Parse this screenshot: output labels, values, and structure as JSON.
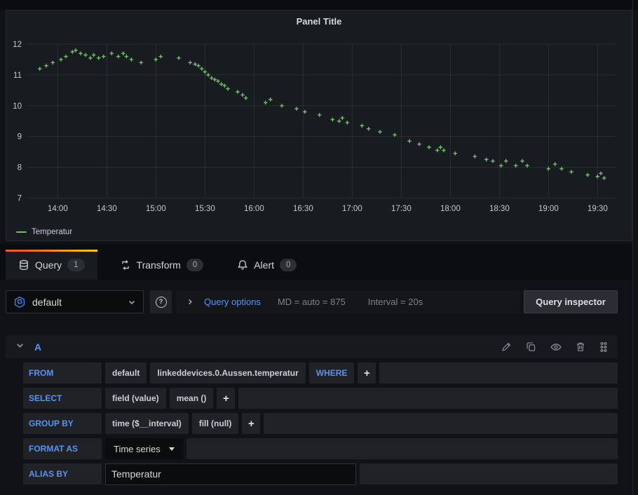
{
  "panel": {
    "title": "Panel Title"
  },
  "chart_data": {
    "type": "scatter",
    "title": "Panel Title",
    "x_range": [
      "13:41",
      "19:41"
    ],
    "x_ticks": [
      "14:00",
      "14:30",
      "15:00",
      "15:30",
      "16:00",
      "16:30",
      "17:00",
      "17:30",
      "18:00",
      "18:30",
      "19:00",
      "19:30"
    ],
    "ylim": [
      7,
      12
    ],
    "y_ticks": [
      7,
      8,
      9,
      10,
      11,
      12
    ],
    "grid": true,
    "legend": {
      "position": "bottom-left"
    },
    "series": [
      {
        "name": "Temperatur",
        "color": "#73BF69",
        "points": [
          [
            "13:49",
            11.2
          ],
          [
            "13:53",
            11.3
          ],
          [
            "13:57",
            11.4
          ],
          [
            "14:02",
            11.5
          ],
          [
            "14:05",
            11.6
          ],
          [
            "14:09",
            11.75
          ],
          [
            "14:11",
            11.8
          ],
          [
            "14:14",
            11.7
          ],
          [
            "14:17",
            11.65
          ],
          [
            "14:20",
            11.55
          ],
          [
            "14:22",
            11.65
          ],
          [
            "14:25",
            11.55
          ],
          [
            "14:28",
            11.6
          ],
          [
            "14:33",
            11.7
          ],
          [
            "14:37",
            11.6
          ],
          [
            "14:40",
            11.7
          ],
          [
            "14:42",
            11.6
          ],
          [
            "14:45",
            11.5
          ],
          [
            "14:51",
            11.4
          ],
          [
            "15:00",
            11.5
          ],
          [
            "15:03",
            11.6
          ],
          [
            "15:14",
            11.55
          ],
          [
            "15:21",
            11.4
          ],
          [
            "15:24",
            11.35
          ],
          [
            "15:26",
            11.3
          ],
          [
            "15:28",
            11.2
          ],
          [
            "15:30",
            11.1
          ],
          [
            "15:32",
            11.0
          ],
          [
            "15:34",
            10.9
          ],
          [
            "15:36",
            10.85
          ],
          [
            "15:38",
            10.8
          ],
          [
            "15:40",
            10.7
          ],
          [
            "15:42",
            10.65
          ],
          [
            "15:44",
            10.55
          ],
          [
            "15:50",
            10.45
          ],
          [
            "15:53",
            10.35
          ],
          [
            "15:55",
            10.25
          ],
          [
            "16:07",
            10.1
          ],
          [
            "16:10",
            10.2
          ],
          [
            "16:17",
            10.0
          ],
          [
            "16:26",
            9.9
          ],
          [
            "16:31",
            9.8
          ],
          [
            "16:40",
            9.7
          ],
          [
            "16:48",
            9.55
          ],
          [
            "16:52",
            9.5
          ],
          [
            "16:54",
            9.6
          ],
          [
            "16:57",
            9.45
          ],
          [
            "17:06",
            9.35
          ],
          [
            "17:10",
            9.25
          ],
          [
            "17:17",
            9.15
          ],
          [
            "17:26",
            9.05
          ],
          [
            "17:35",
            8.85
          ],
          [
            "17:41",
            8.75
          ],
          [
            "17:47",
            8.65
          ],
          [
            "17:52",
            8.55
          ],
          [
            "17:54",
            8.65
          ],
          [
            "17:56",
            8.55
          ],
          [
            "18:03",
            8.45
          ],
          [
            "18:15",
            8.35
          ],
          [
            "18:22",
            8.25
          ],
          [
            "18:26",
            8.2
          ],
          [
            "18:31",
            8.05
          ],
          [
            "18:34",
            8.2
          ],
          [
            "18:40",
            8.05
          ],
          [
            "18:44",
            8.2
          ],
          [
            "18:47",
            8.05
          ],
          [
            "19:00",
            7.95
          ],
          [
            "19:04",
            8.1
          ],
          [
            "19:08",
            7.95
          ],
          [
            "19:14",
            7.85
          ],
          [
            "19:24",
            7.75
          ],
          [
            "19:30",
            7.7
          ],
          [
            "19:32",
            7.8
          ],
          [
            "19:34",
            7.65
          ]
        ]
      }
    ]
  },
  "tabs": [
    {
      "label": "Query",
      "count": "1"
    },
    {
      "label": "Transform",
      "count": "0"
    },
    {
      "label": "Alert",
      "count": "0"
    }
  ],
  "toolbar": {
    "datasource": {
      "value": "default"
    },
    "help": "?",
    "query_options_label": "Query options",
    "query_options_summary": {
      "max_data_points": "MD = auto = 875",
      "interval": "Interval = 20s"
    },
    "query_inspector_label": "Query inspector"
  },
  "query": {
    "ref_id": "A",
    "rows": [
      {
        "label": "FROM",
        "segments": [
          {
            "text": "default"
          },
          {
            "text": "linkeddevices.0.Aussen.temperatur"
          },
          {
            "text": "WHERE",
            "style": "keyword"
          },
          {
            "text": "+",
            "style": "plus"
          }
        ]
      },
      {
        "label": "SELECT",
        "segments": [
          {
            "text": "field (value)"
          },
          {
            "text": "mean ()"
          },
          {
            "text": "+",
            "style": "plus"
          }
        ]
      },
      {
        "label": "GROUP BY",
        "segments": [
          {
            "text": "time ($__interval)"
          },
          {
            "text": "fill (null)"
          },
          {
            "text": "+",
            "style": "plus"
          }
        ]
      },
      {
        "label": "FORMAT AS",
        "dropdown": {
          "value": "Time series"
        }
      },
      {
        "label": "ALIAS BY",
        "input": {
          "value": "Temperatur"
        }
      }
    ]
  },
  "colors": {
    "accent_blue": "#5794F2",
    "series_green": "#73BF69",
    "tab_gradient_start": "#F05A28",
    "tab_gradient_end": "#FBCA0A",
    "panel_bg": "#181B1F",
    "page_bg": "#111217"
  }
}
